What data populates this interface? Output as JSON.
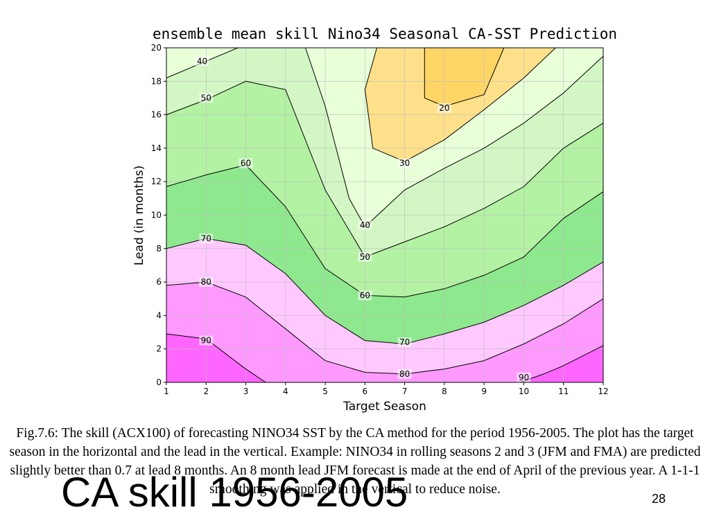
{
  "chart_data": {
    "type": "contour",
    "title": "ensemble mean skill Nino34 Seasonal CA-SST Prediction",
    "xlabel": "Target Season",
    "ylabel": "Lead (in months)",
    "xlim": [
      1,
      12
    ],
    "ylim": [
      0,
      20
    ],
    "x_ticks": [
      1,
      2,
      3,
      4,
      5,
      6,
      7,
      8,
      9,
      10,
      11,
      12
    ],
    "y_ticks": [
      0,
      2,
      4,
      6,
      8,
      10,
      12,
      14,
      16,
      18,
      20
    ],
    "contour_levels": [
      20,
      30,
      40,
      50,
      60,
      70,
      80,
      90
    ],
    "contours": [
      {
        "level": 90,
        "points": [
          [
            1,
            2.9
          ],
          [
            2,
            2.6
          ],
          [
            3,
            0.8
          ],
          [
            3.5,
            0
          ]
        ]
      },
      {
        "level": 90,
        "points": [
          [
            9.9,
            0
          ],
          [
            10.5,
            0.5
          ],
          [
            11,
            1.0
          ],
          [
            12,
            2.2
          ]
        ]
      },
      {
        "level": 80,
        "points": [
          [
            1,
            5.8
          ],
          [
            2,
            6.0
          ],
          [
            3,
            5.1
          ],
          [
            4,
            3.2
          ],
          [
            5,
            1.3
          ],
          [
            6,
            0.6
          ],
          [
            7,
            0.5
          ],
          [
            8,
            0.8
          ],
          [
            9,
            1.3
          ],
          [
            10,
            2.3
          ],
          [
            11,
            3.5
          ],
          [
            12,
            5.0
          ]
        ]
      },
      {
        "level": 70,
        "points": [
          [
            1,
            8.0
          ],
          [
            2,
            8.6
          ],
          [
            3,
            8.2
          ],
          [
            4,
            6.5
          ],
          [
            5,
            4.0
          ],
          [
            6,
            2.5
          ],
          [
            7,
            2.3
          ],
          [
            8,
            2.9
          ],
          [
            9,
            3.6
          ],
          [
            10,
            4.6
          ],
          [
            11,
            5.8
          ],
          [
            12,
            7.2
          ]
        ]
      },
      {
        "level": 60,
        "points": [
          [
            1,
            11.7
          ],
          [
            2,
            12.4
          ],
          [
            3,
            13.0
          ],
          [
            4,
            10.5
          ],
          [
            5,
            6.8
          ],
          [
            6,
            5.2
          ],
          [
            7,
            5.1
          ],
          [
            8,
            5.6
          ],
          [
            9,
            6.4
          ],
          [
            10,
            7.5
          ],
          [
            11,
            9.8
          ],
          [
            12,
            11.4
          ]
        ]
      },
      {
        "level": 50,
        "points": [
          [
            1,
            16.0
          ],
          [
            2,
            16.9
          ],
          [
            3,
            18.0
          ],
          [
            4,
            17.5
          ],
          [
            5,
            11.5
          ],
          [
            6,
            7.5
          ],
          [
            7,
            8.4
          ],
          [
            8,
            9.3
          ],
          [
            9,
            10.4
          ],
          [
            10,
            11.7
          ],
          [
            11,
            14.0
          ],
          [
            12,
            15.5
          ]
        ]
      },
      {
        "level": 40,
        "points": [
          [
            1,
            18.2
          ],
          [
            2,
            19.2
          ],
          [
            2.8,
            20
          ]
        ]
      },
      {
        "level": 40,
        "points": [
          [
            4.5,
            20
          ],
          [
            5,
            16.5
          ],
          [
            5.6,
            11
          ],
          [
            6,
            9.3
          ],
          [
            7,
            11.5
          ],
          [
            8,
            12.8
          ],
          [
            9,
            14.0
          ],
          [
            10,
            15.5
          ],
          [
            11,
            17.3
          ],
          [
            12,
            19.5
          ]
        ]
      },
      {
        "level": 30,
        "points": [
          [
            6.3,
            20
          ],
          [
            6,
            17.5
          ],
          [
            6.2,
            14
          ],
          [
            7,
            13.2
          ],
          [
            8,
            14.5
          ],
          [
            9,
            16.3
          ],
          [
            10,
            18.2
          ],
          [
            10.8,
            20
          ]
        ]
      },
      {
        "level": 20,
        "points": [
          [
            7.5,
            20
          ],
          [
            7.5,
            17
          ],
          [
            8,
            16.5
          ],
          [
            9,
            17.2
          ],
          [
            9.5,
            20
          ]
        ]
      }
    ],
    "contour_labels": [
      {
        "text": "90",
        "x": 2.0,
        "y": 2.5
      },
      {
        "text": "90",
        "x": 10.0,
        "y": 0.3
      },
      {
        "text": "80",
        "x": 2.0,
        "y": 6.0
      },
      {
        "text": "80",
        "x": 7.0,
        "y": 0.5
      },
      {
        "text": "70",
        "x": 2.0,
        "y": 8.6
      },
      {
        "text": "70",
        "x": 7.0,
        "y": 2.4
      },
      {
        "text": "60",
        "x": 3.0,
        "y": 13.1
      },
      {
        "text": "60",
        "x": 6.0,
        "y": 5.2
      },
      {
        "text": "50",
        "x": 2.0,
        "y": 17.0
      },
      {
        "text": "50",
        "x": 6.0,
        "y": 7.5
      },
      {
        "text": "40",
        "x": 1.9,
        "y": 19.2
      },
      {
        "text": "40",
        "x": 6.0,
        "y": 9.4
      },
      {
        "text": "30",
        "x": 7.0,
        "y": 13.1
      },
      {
        "text": "20",
        "x": 8.0,
        "y": 16.4
      }
    ],
    "grid": true,
    "legend": "none",
    "colors": {
      "band_90_plus": "#ff66ff",
      "band_80_90": "#ff99ff",
      "band_70_80": "#ffc8ff",
      "band_60_70": "#8ee88e",
      "band_50_60": "#b3f2a3",
      "band_40_50": "#d2f7c4",
      "band_30_40": "#e8ffd8",
      "band_20_30": "#ffe08a",
      "band_below_20": "#ffd566",
      "grid": "#bbbbbb",
      "contour": "#000000"
    }
  },
  "caption": "Fig.7.6: The skill (ACX100) of forecasting NINO34 SST by the CA method for the period 1956-2005. The plot has the target season in the horizontal and the lead in the vertical. Example: NINO34 in rolling seasons 2 and 3 (JFM and FMA) are predicted slightly better than 0.7 at lead 8 months. An 8 month lead JFM forecast is made at the end of April of the previous year. A 1-1-1 smoothing was applied in the vertical to reduce noise.",
  "slide": {
    "title": "CA skill 1956-2005",
    "page_number": "28"
  }
}
